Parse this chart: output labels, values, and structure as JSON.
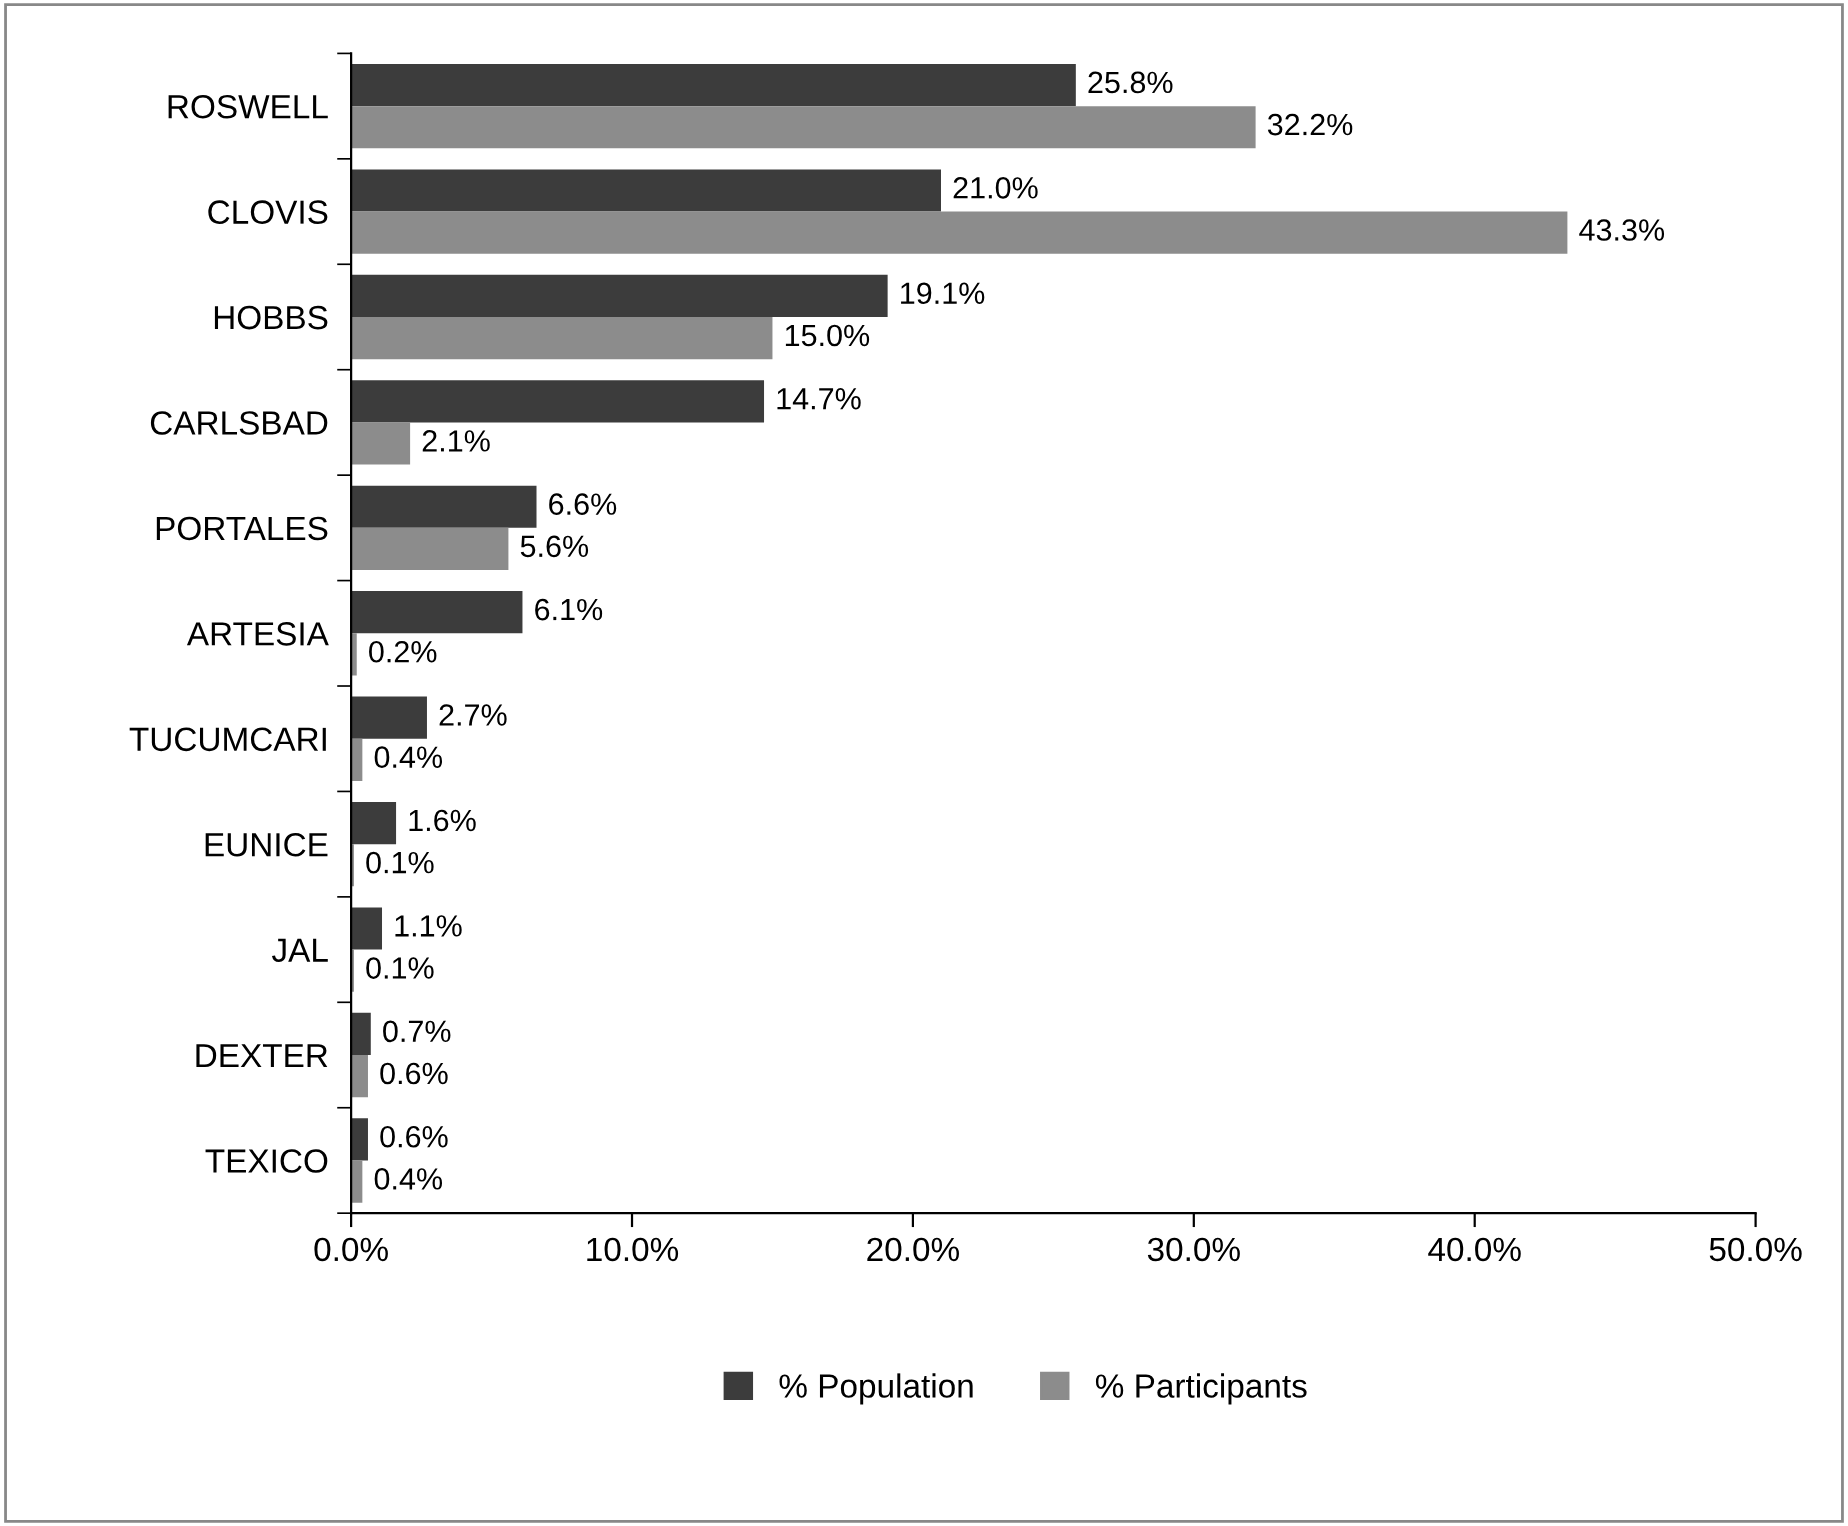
{
  "chart_data": {
    "type": "bar",
    "orientation": "horizontal",
    "categories": [
      "ROSWELL",
      "CLOVIS",
      "HOBBS",
      "CARLSBAD",
      "PORTALES",
      "ARTESIA",
      "TUCUMCARI",
      "EUNICE",
      "JAL",
      "DEXTER",
      "TEXICO"
    ],
    "series": [
      {
        "name": "% Population",
        "color": "#3c3c3c",
        "values": [
          25.8,
          21.0,
          19.1,
          14.7,
          6.6,
          6.1,
          2.7,
          1.6,
          1.1,
          0.7,
          0.6
        ],
        "value_labels": [
          "25.8%",
          "21.0%",
          "19.1%",
          "14.7%",
          "6.6%",
          "6.1%",
          "2.7%",
          "1.6%",
          "1.1%",
          "0.7%",
          "0.6%"
        ]
      },
      {
        "name": "% Participants",
        "color": "#8c8c8c",
        "values": [
          32.2,
          43.3,
          15.0,
          2.1,
          5.6,
          0.2,
          0.4,
          0.1,
          0.1,
          0.6,
          0.4
        ],
        "value_labels": [
          "32.2%",
          "43.3%",
          "15.0%",
          "2.1%",
          "5.6%",
          "0.2%",
          "0.4%",
          "0.1%",
          "0.1%",
          "0.6%",
          "0.4%"
        ]
      }
    ],
    "xlim": [
      0,
      50
    ],
    "xticks": [
      {
        "value": 0,
        "label": "0.0%"
      },
      {
        "value": 10,
        "label": "10.0%"
      },
      {
        "value": 20,
        "label": "20.0%"
      },
      {
        "value": 30,
        "label": "30.0%"
      },
      {
        "value": 40,
        "label": "40.0%"
      },
      {
        "value": 50,
        "label": "50.0%"
      }
    ],
    "grid": false,
    "legend": "bottom"
  }
}
